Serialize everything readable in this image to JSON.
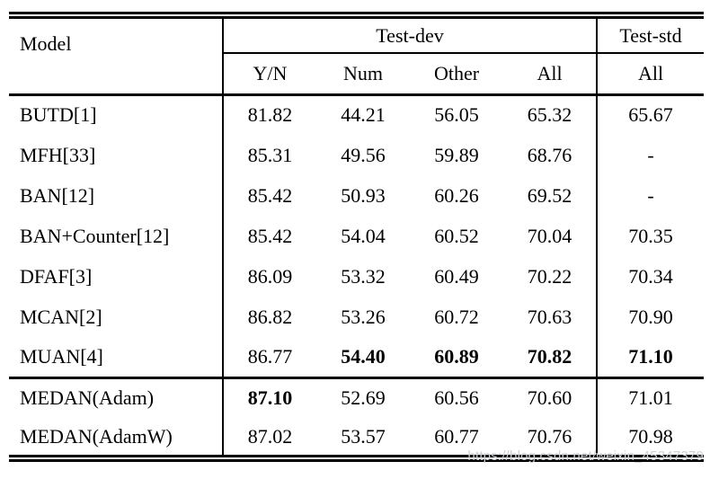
{
  "table": {
    "header": {
      "model": "Model",
      "test_dev": "Test-dev",
      "test_std": "Test-std"
    },
    "sub_headers": [
      "Y/N",
      "Num",
      "Other",
      "All",
      "All"
    ],
    "rows": [
      {
        "model": "BUTD[1]",
        "values": [
          "81.82",
          "44.21",
          "56.05",
          "65.32",
          "65.67"
        ],
        "bold": [
          false,
          false,
          false,
          false,
          false
        ],
        "thick_top": false
      },
      {
        "model": "MFH[33]",
        "values": [
          "85.31",
          "49.56",
          "59.89",
          "68.76",
          "-"
        ],
        "bold": [
          false,
          false,
          false,
          false,
          false
        ],
        "thick_top": false
      },
      {
        "model": "BAN[12]",
        "values": [
          "85.42",
          "50.93",
          "60.26",
          "69.52",
          "-"
        ],
        "bold": [
          false,
          false,
          false,
          false,
          false
        ],
        "thick_top": false
      },
      {
        "model": "BAN+Counter[12]",
        "values": [
          "85.42",
          "54.04",
          "60.52",
          "70.04",
          "70.35"
        ],
        "bold": [
          false,
          false,
          false,
          false,
          false
        ],
        "thick_top": false
      },
      {
        "model": "DFAF[3]",
        "values": [
          "86.09",
          "53.32",
          "60.49",
          "70.22",
          "70.34"
        ],
        "bold": [
          false,
          false,
          false,
          false,
          false
        ],
        "thick_top": false
      },
      {
        "model": "MCAN[2]",
        "values": [
          "86.82",
          "53.26",
          "60.72",
          "70.63",
          "70.90"
        ],
        "bold": [
          false,
          false,
          false,
          false,
          false
        ],
        "thick_top": false
      },
      {
        "model": "MUAN[4]",
        "values": [
          "86.77",
          "54.40",
          "60.89",
          "70.82",
          "71.10"
        ],
        "bold": [
          false,
          true,
          true,
          true,
          true
        ],
        "thick_top": false
      },
      {
        "model": "MEDAN(Adam)",
        "values": [
          "87.10",
          "52.69",
          "60.56",
          "70.60",
          "71.01"
        ],
        "bold": [
          true,
          false,
          false,
          false,
          false
        ],
        "thick_top": true
      },
      {
        "model": "MEDAN(AdamW)",
        "values": [
          "87.02",
          "53.57",
          "60.77",
          "70.76",
          "70.98"
        ],
        "bold": [
          false,
          false,
          false,
          false,
          false
        ],
        "thick_top": false
      }
    ]
  },
  "watermark": "https://blog.csdn.net/weixin_45347379",
  "colors": {
    "text": "#000000",
    "background": "#ffffff",
    "rule": "#000000",
    "watermark": "#ced2d5"
  }
}
